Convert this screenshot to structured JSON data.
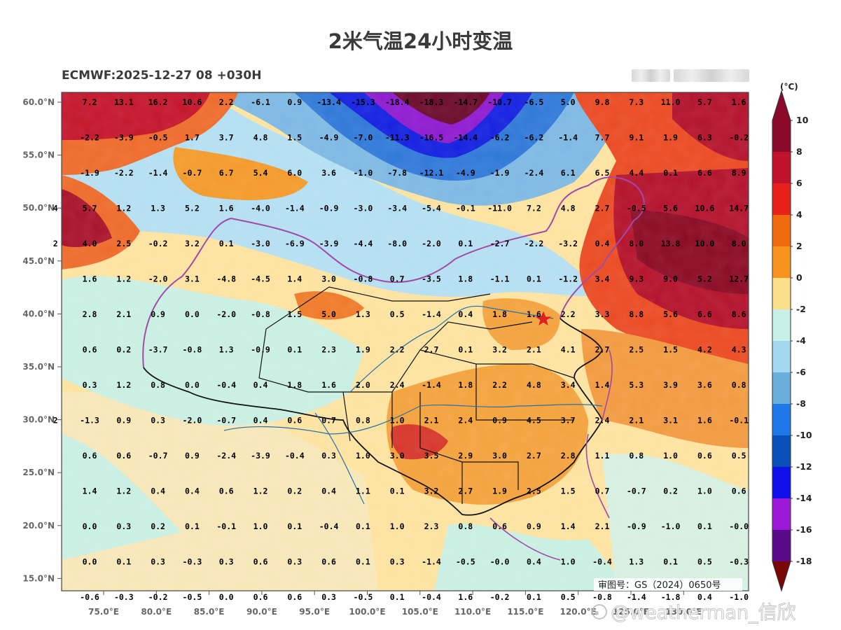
{
  "header": {
    "title": "2米气温24小时变温",
    "run_info": "ECMWF:2025-12-27 08 +030H"
  },
  "map": {
    "lat_labels": [
      "60.0°N",
      "55.0°N",
      "50.0°N",
      "45.0°N",
      "40.0°N",
      "35.0°N",
      "30.0°N",
      "25.0°N",
      "20.0°N",
      "15.0°N"
    ],
    "lon_labels": [
      "75.0°E",
      "80.0°E",
      "85.0°E",
      "90.0°E",
      "95.0°E",
      "100.0°E",
      "105.0°E",
      "110.0°E",
      "115.0°E",
      "120.0°E",
      "125.0°E",
      "130.0°E"
    ],
    "approval_number": "审图号：GS（2024）0650号",
    "station_values": [
      [
        "7.2",
        "13.1",
        "16.2",
        "10.6",
        "2.2",
        "-6.1",
        "0.9",
        "-13.4",
        "-15.3",
        "-18.4",
        "-18.3",
        "-14.7",
        "-10.7",
        "-6.5",
        "5.0",
        "9.8",
        "7.3",
        "11.0",
        "5.7",
        "1.6"
      ],
      [
        "-2.2",
        "-3.9",
        "-0.5",
        "1.7",
        "3.7",
        "4.8",
        "1.5",
        "-4.9",
        "-7.0",
        "-11.3",
        "-16.5",
        "-14.4",
        "-6.2",
        "-6.2",
        "-1.4",
        "7.7",
        "9.1",
        "1.9",
        "6.3",
        "-0.2"
      ],
      [
        "-1.9",
        "-2.2",
        "-1.4",
        "-0.7",
        "6.7",
        "5.4",
        "6.0",
        "3.6",
        "-1.0",
        "-7.8",
        "-12.1",
        "-4.9",
        "-1.9",
        "-2.4",
        "6.1",
        "6.5",
        "4.4",
        "0.1",
        "6.6",
        "8.9"
      ],
      [
        "4",
        "5.7",
        "1.2",
        "1.3",
        "5.2",
        "1.6",
        "-4.0",
        "-1.4",
        "-0.9",
        "-3.0",
        "-3.4",
        "-5.4",
        "-0.1",
        "-11.0",
        "7.2",
        "4.8",
        "2.7",
        "-0.5",
        "5.6",
        "10.6",
        "14.7"
      ],
      [
        "2",
        "4.0",
        "2.5",
        "-0.2",
        "3.2",
        "0.1",
        "-3.0",
        "-6.9",
        "-3.9",
        "-4.4",
        "-8.0",
        "-2.0",
        "0.1",
        "-2.7",
        "-2.2",
        "-3.2",
        "0.4",
        "8.0",
        "13.8",
        "10.0",
        "8.0"
      ],
      [
        "1.6",
        "1.2",
        "-2.0",
        "3.1",
        "-4.8",
        "-4.5",
        "1.4",
        "3.0",
        "-0.8",
        "0.7",
        "-3.5",
        "1.8",
        "-1.1",
        "0.1",
        "-1.2",
        "3.4",
        "9.3",
        "9.0",
        "5.2",
        "12.7"
      ],
      [
        "2.8",
        "2.1",
        "0.9",
        "0.0",
        "-2.0",
        "-0.8",
        "1.5",
        "5.0",
        "1.3",
        "0.5",
        "-1.4",
        "0.4",
        "1.8",
        "1.6",
        "2.2",
        "3.3",
        "8.8",
        "5.6",
        "6.6",
        "8.6"
      ],
      [
        "0.6",
        "0.2",
        "-3.7",
        "-0.8",
        "1.3",
        "-0.9",
        "0.1",
        "2.3",
        "1.9",
        "2.2",
        "2.7",
        "0.1",
        "3.2",
        "2.1",
        "4.1",
        "2.7",
        "2.5",
        "1.5",
        "4.2",
        "4.3"
      ],
      [
        "0.3",
        "1.2",
        "0.8",
        "0.0",
        "-0.4",
        "0.4",
        "1.8",
        "1.6",
        "2.0",
        "2.4",
        "-1.4",
        "1.8",
        "2.2",
        "4.8",
        "3.4",
        "1.4",
        "5.3",
        "3.9",
        "3.6",
        "0.8"
      ],
      [
        "2",
        "-1.3",
        "0.9",
        "0.3",
        "-2.0",
        "-0.7",
        "0.4",
        "0.6",
        "0.7",
        "0.8",
        "1.0",
        "2.1",
        "2.4",
        "0.9",
        "4.5",
        "3.7",
        "2.4",
        "2.1",
        "3.1",
        "1.6",
        "-0.1"
      ],
      [
        "0.6",
        "0.6",
        "-0.7",
        "0.9",
        "-2.4",
        "-3.9",
        "-0.4",
        "0.3",
        "1.0",
        "3.0",
        "3.5",
        "2.9",
        "3.0",
        "2.7",
        "2.8",
        "1.1",
        "0.8",
        "1.0",
        "0.6",
        "0.5"
      ],
      [
        "1.4",
        "1.2",
        "0.4",
        "0.4",
        "0.6",
        "1.2",
        "0.2",
        "0.4",
        "1.1",
        "0.1",
        "3.2",
        "2.7",
        "1.9",
        "2.5",
        "1.5",
        "0.7",
        "-0.7",
        "0.2",
        "1.0",
        "0.6"
      ],
      [
        "0.0",
        "0.3",
        "0.2",
        "0.1",
        "-0.1",
        "1.0",
        "0.1",
        "-0.4",
        "0.1",
        "1.0",
        "2.3",
        "0.8",
        "0.6",
        "0.9",
        "1.4",
        "2.1",
        "-0.9",
        "-1.0",
        "0.1",
        "-0.0"
      ],
      [
        "0.0",
        "0.1",
        "0.3",
        "-0.3",
        "0.3",
        "0.6",
        "0.3",
        "0.6",
        "0.1",
        "0.3",
        "-1.4",
        "-0.5",
        "-0.0",
        "0.4",
        "1.0",
        "-0.4",
        "1.3",
        "0.1",
        "0.5",
        "-0.3"
      ],
      [
        "-0.6",
        "-0.3",
        "-0.2",
        "-0.5",
        "0.0",
        "0.6",
        "0.6",
        "0.3",
        "-0.5",
        "0.1",
        "-0.4",
        "1.6",
        "-0.2",
        "0.1",
        "0.5",
        "-0.8",
        "-1.4",
        "-1.8",
        "0.4",
        "-1.0"
      ]
    ]
  },
  "colorbar": {
    "unit": "(°C)",
    "labels": [
      "10",
      "8",
      "6",
      "4",
      "2",
      "0",
      "-2",
      "-4",
      "-6",
      "-8",
      "-10",
      "-12",
      "-14",
      "-16",
      "-18"
    ],
    "colors": [
      "#f2a0a0",
      "#8b0a2a",
      "#c0122a",
      "#e8201c",
      "#f06a10",
      "#f7931e",
      "#fde08a",
      "#c9f0e6",
      "#a3d8f0",
      "#6aaedb",
      "#1f78e8",
      "#0a4fb8",
      "#1010e8",
      "#9b19d6",
      "#5a0b8a",
      "#7a0505"
    ]
  },
  "watermark": "@weatherman_信欣"
}
